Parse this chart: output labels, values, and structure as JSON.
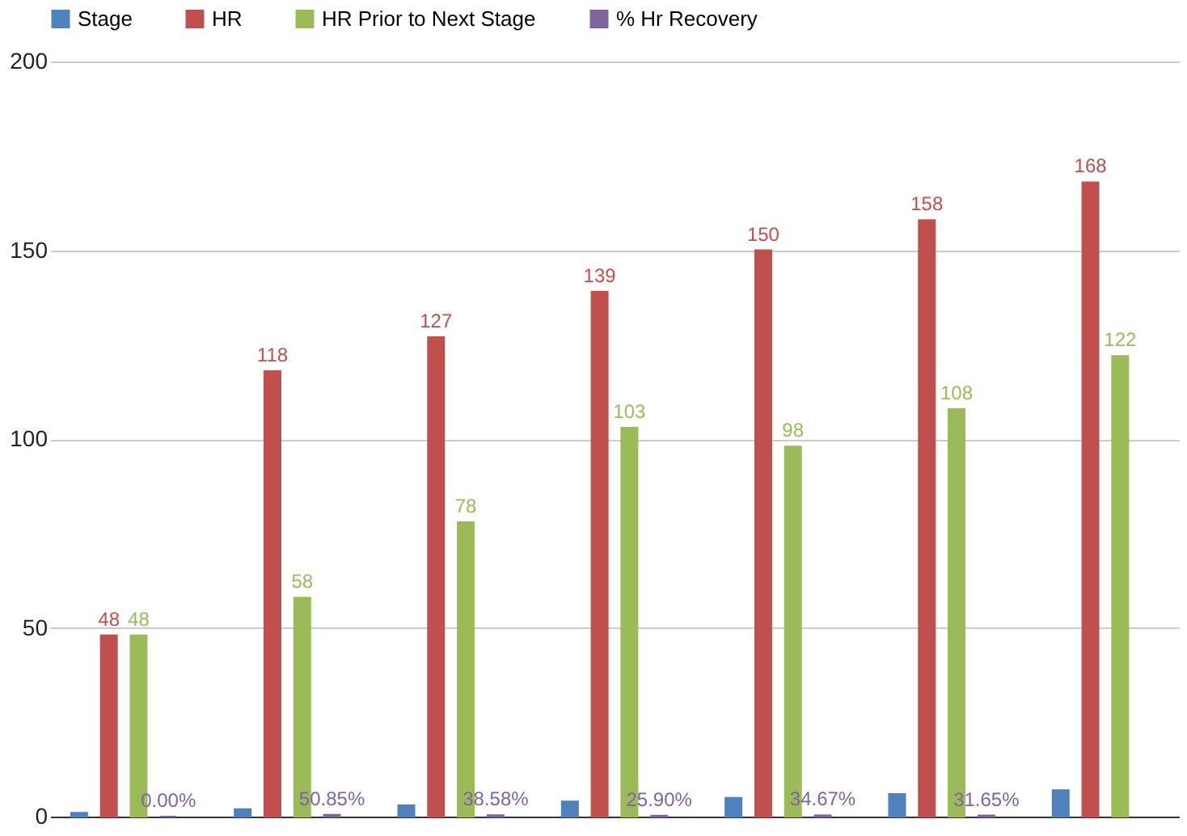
{
  "chart_data": {
    "type": "bar",
    "categories": [
      null,
      null,
      null,
      null,
      null,
      null,
      null
    ],
    "series": [
      {
        "name": "Stage",
        "color": "#4f81bd",
        "values": [
          1,
          2,
          3,
          4,
          5,
          6,
          7
        ]
      },
      {
        "name": "HR",
        "color": "#c0504d",
        "values": [
          48,
          118,
          127,
          139,
          150,
          158,
          168
        ],
        "value_labels": [
          "48",
          "118",
          "127",
          "139",
          "150",
          "158",
          "168"
        ]
      },
      {
        "name": "HR Prior to Next Stage",
        "color": "#9bbb59",
        "values": [
          48,
          58,
          78,
          103,
          98,
          108,
          122
        ],
        "value_labels": [
          "48",
          "58",
          "78",
          "103",
          "98",
          "108",
          "122"
        ]
      },
      {
        "name": "% Hr Recovery",
        "color": "#8064a2",
        "values": [
          0,
          0.5085,
          0.3858,
          0.259,
          0.3467,
          0.3165,
          null
        ],
        "value_labels": [
          "0.00%",
          "50.85%",
          "38.58%",
          "25.90%",
          "34.67%",
          "31.65%",
          null
        ]
      }
    ],
    "ylim": [
      0,
      200
    ],
    "yticks": [
      0,
      50,
      100,
      150,
      200
    ],
    "grid": "y",
    "legend": "top",
    "tick_labels": "y"
  }
}
